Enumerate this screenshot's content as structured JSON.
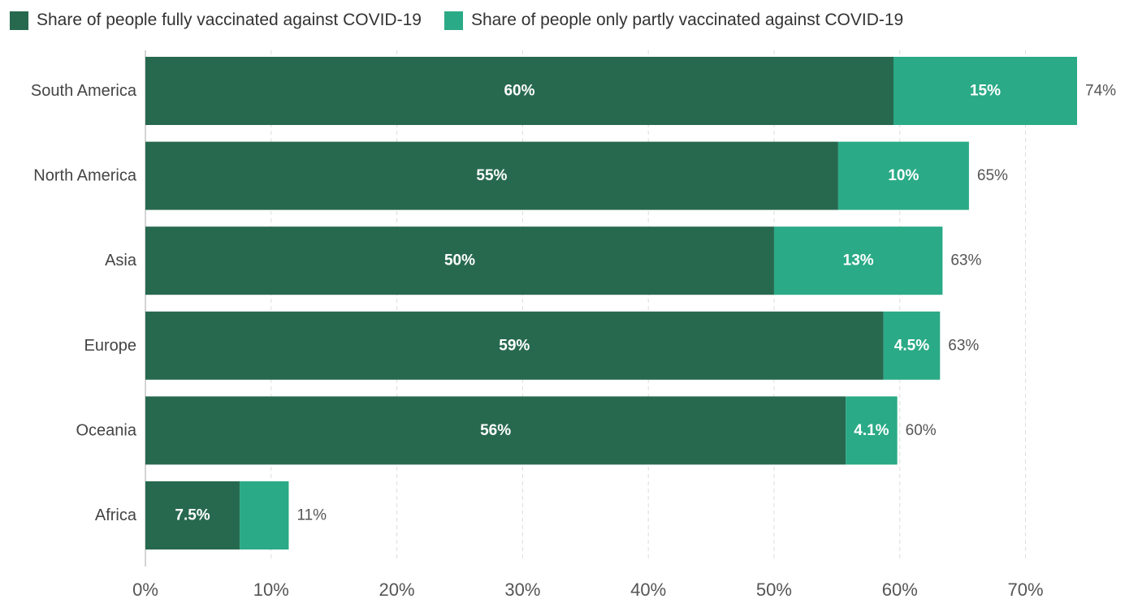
{
  "legend": [
    {
      "label": "Share of people fully vaccinated against COVID-19",
      "color": "#27694f"
    },
    {
      "label": "Share of people only partly vaccinated against COVID-19",
      "color": "#2aaa86"
    }
  ],
  "chart_data": {
    "type": "bar",
    "orientation": "horizontal",
    "stacked": true,
    "categories": [
      "South America",
      "North America",
      "Asia",
      "Europe",
      "Oceania",
      "Africa"
    ],
    "series": [
      {
        "name": "Share of people fully vaccinated against COVID-19",
        "values": [
          59.5,
          55.1,
          50.0,
          58.7,
          55.7,
          7.5
        ],
        "labels": [
          "60%",
          "55%",
          "50%",
          "59%",
          "56%",
          "7.5%"
        ],
        "color": "#27694f"
      },
      {
        "name": "Share of people only partly vaccinated against COVID-19",
        "values": [
          14.6,
          10.4,
          13.4,
          4.5,
          4.1,
          3.9
        ],
        "labels": [
          "15%",
          "10%",
          "13%",
          "4.5%",
          "4.1%",
          ""
        ],
        "color": "#2aaa86"
      }
    ],
    "totals": [
      "74%",
      "65%",
      "63%",
      "63%",
      "60%",
      "11%"
    ],
    "x_ticks": [
      {
        "value": 0,
        "label": "0%"
      },
      {
        "value": 10,
        "label": "10%"
      },
      {
        "value": 20,
        "label": "20%"
      },
      {
        "value": 30,
        "label": "30%"
      },
      {
        "value": 40,
        "label": "40%"
      },
      {
        "value": 50,
        "label": "50%"
      },
      {
        "value": 60,
        "label": "60%"
      },
      {
        "value": 70,
        "label": "70%"
      }
    ],
    "xlim": [
      0,
      74.1
    ],
    "grid": true,
    "legend_position": "top-left",
    "title": "",
    "xlabel": "",
    "ylabel": ""
  }
}
